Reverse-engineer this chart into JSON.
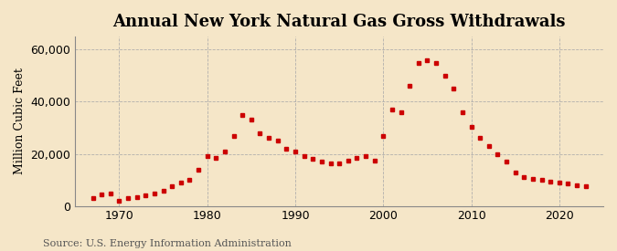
{
  "title": "Annual New York Natural Gas Gross Withdrawals",
  "ylabel": "Million Cubic Feet",
  "source": "Source: U.S. Energy Information Administration",
  "background_color": "#f5e6c8",
  "plot_background_color": "#f5e6c8",
  "marker_color": "#cc0000",
  "grid_color": "#aaaaaa",
  "years": [
    1967,
    1968,
    1969,
    1970,
    1971,
    1972,
    1973,
    1974,
    1975,
    1976,
    1977,
    1978,
    1979,
    1980,
    1981,
    1982,
    1983,
    1984,
    1985,
    1986,
    1987,
    1988,
    1989,
    1990,
    1991,
    1992,
    1993,
    1994,
    1995,
    1996,
    1997,
    1998,
    1999,
    2000,
    2001,
    2002,
    2003,
    2004,
    2005,
    2006,
    2007,
    2008,
    2009,
    2010,
    2011,
    2012,
    2013,
    2014,
    2015,
    2016,
    2017,
    2018,
    2019,
    2020,
    2021,
    2022,
    2023
  ],
  "values": [
    3200,
    4500,
    4800,
    2000,
    3000,
    3500,
    4200,
    4800,
    6000,
    7500,
    9000,
    10000,
    14000,
    19000,
    18500,
    21000,
    27000,
    35000,
    33000,
    28000,
    26000,
    25000,
    22000,
    21000,
    19000,
    18000,
    17000,
    16500,
    16500,
    17500,
    18500,
    19000,
    17500,
    27000,
    37000,
    36000,
    46000,
    55000,
    56000,
    55000,
    50000,
    45000,
    36000,
    30500,
    26000,
    23000,
    20000,
    17000,
    13000,
    11000,
    10500,
    10000,
    9500,
    9000,
    8500,
    8000,
    7500
  ],
  "xlim": [
    1965,
    2025
  ],
  "ylim": [
    0,
    65000
  ],
  "yticks": [
    0,
    20000,
    40000,
    60000
  ],
  "xticks": [
    1970,
    1980,
    1990,
    2000,
    2010,
    2020
  ],
  "title_fontsize": 13,
  "label_fontsize": 9,
  "tick_fontsize": 9,
  "source_fontsize": 8
}
